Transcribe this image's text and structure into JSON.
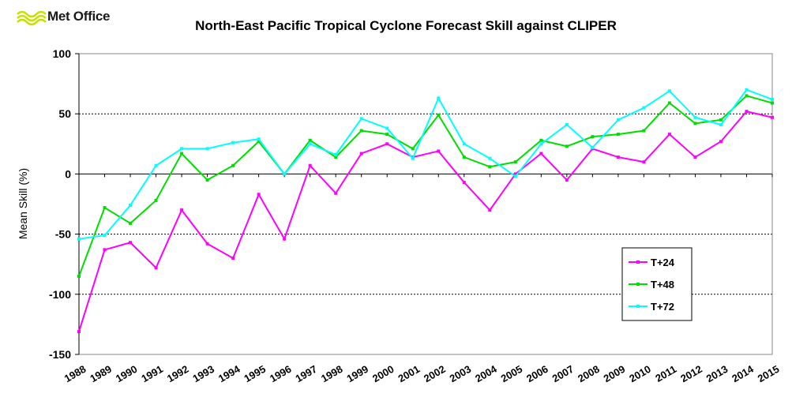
{
  "logo": {
    "text": "Met Office"
  },
  "chart_data": {
    "type": "line",
    "title": "North-East Pacific Tropical Cyclone Forecast Skill against CLIPER",
    "xlabel": "",
    "ylabel": "Mean Skill  (%)",
    "ylim": [
      -150,
      100
    ],
    "yticks": [
      100,
      50,
      0,
      -50,
      -100,
      -150
    ],
    "grid": "horizontal dotted at 50 and -50, -100; solid at 0",
    "legend_position": "bottom-right",
    "categories": [
      "1988",
      "1989",
      "1990",
      "1991",
      "1992",
      "1993",
      "1994",
      "1995",
      "1996",
      "1997",
      "1998",
      "1999",
      "2000",
      "2001",
      "2002",
      "2003",
      "2004",
      "2005",
      "2006",
      "2007",
      "2008",
      "2009",
      "2010",
      "2011",
      "2012",
      "2013",
      "2014",
      "2015"
    ],
    "series": [
      {
        "name": "T+24",
        "color": "#ff00ff",
        "values": [
          -131,
          -63,
          -57,
          -78,
          -30,
          -58,
          -70,
          -17,
          -54,
          7,
          -16,
          17,
          25,
          14,
          19,
          -7,
          -30,
          0,
          17,
          -5,
          21,
          14,
          10,
          33,
          14,
          27,
          52,
          47
        ]
      },
      {
        "name": "T+48",
        "color": "#00dd00",
        "values": [
          -85,
          -28,
          -41,
          -22,
          17,
          -5,
          7,
          27,
          0,
          28,
          14,
          36,
          33,
          21,
          49,
          14,
          6,
          10,
          28,
          23,
          31,
          33,
          36,
          59,
          42,
          45,
          65,
          59
        ]
      },
      {
        "name": "T+72",
        "color": "#00ffff",
        "values": [
          -54,
          -51,
          -26,
          7,
          21,
          21,
          26,
          29,
          0,
          25,
          16,
          46,
          38,
          13,
          63,
          25,
          13,
          -2,
          25,
          41,
          22,
          45,
          55,
          69,
          47,
          41,
          70,
          62
        ]
      }
    ]
  }
}
